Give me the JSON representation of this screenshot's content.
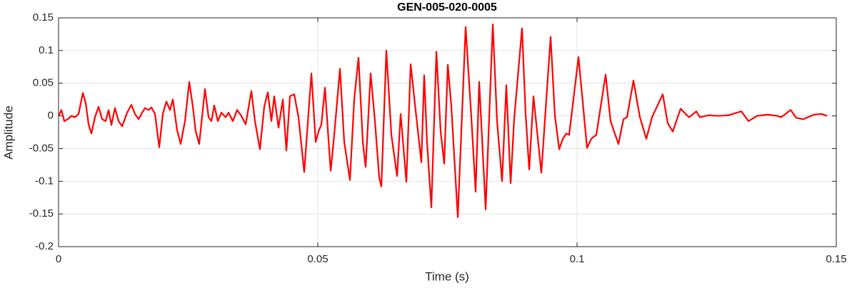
{
  "chart_data": {
    "type": "line",
    "title": "GEN-005-020-0005",
    "xlabel": "Time (s)",
    "ylabel": "Amplitude",
    "x": [
      0,
      0.00055,
      0.0011,
      0.00179,
      0.00248,
      0.00317,
      0.00386,
      0.00468,
      0.00523,
      0.00579,
      0.00634,
      0.00702,
      0.00771,
      0.0084,
      0.00909,
      0.00964,
      0.01019,
      0.01088,
      0.01157,
      0.01226,
      0.01322,
      0.01405,
      0.01474,
      0.01543,
      0.01612,
      0.01667,
      0.01736,
      0.01791,
      0.0186,
      0.01942,
      0.02011,
      0.0208,
      0.02149,
      0.02204,
      0.02287,
      0.02355,
      0.02438,
      0.02521,
      0.0259,
      0.02645,
      0.02713,
      0.02824,
      0.02893,
      0.02948,
      0.03003,
      0.03072,
      0.0314,
      0.03223,
      0.03278,
      0.03361,
      0.03444,
      0.03526,
      0.03609,
      0.03719,
      0.03788,
      0.03884,
      0.03967,
      0.04036,
      0.04105,
      0.0416,
      0.04242,
      0.04325,
      0.04394,
      0.04463,
      0.04545,
      0.04628,
      0.04738,
      0.04876,
      0.04959,
      0.05014,
      0.05069,
      0.05138,
      0.05248,
      0.05317,
      0.05427,
      0.0551,
      0.0562,
      0.05702,
      0.05785,
      0.05868,
      0.05923,
      0.06019,
      0.06102,
      0.06185,
      0.06226,
      0.06322,
      0.06419,
      0.06529,
      0.06598,
      0.06708,
      0.06791,
      0.06901,
      0.06997,
      0.07052,
      0.07107,
      0.0719,
      0.07287,
      0.07369,
      0.07438,
      0.07507,
      0.07576,
      0.077,
      0.07851,
      0.07961,
      0.08044,
      0.08113,
      0.08237,
      0.08375,
      0.08457,
      0.08554,
      0.08636,
      0.08719,
      0.08788,
      0.08939,
      0.09008,
      0.09077,
      0.0916,
      0.09311,
      0.0949,
      0.09573,
      0.09656,
      0.09725,
      0.09793,
      0.09848,
      0.10028,
      0.10193,
      0.10275,
      0.10372,
      0.10551,
      0.10647,
      0.10689,
      0.10799,
      0.10895,
      0.10964,
      0.11088,
      0.11212,
      0.11336,
      0.11446,
      0.11653,
      0.11749,
      0.11846,
      0.11997,
      0.12094,
      0.12163,
      0.123,
      0.12369,
      0.12534,
      0.12713,
      0.1292,
      0.13168,
      0.13306,
      0.13471,
      0.13678,
      0.13857,
      0.13939,
      0.14118,
      0.14229,
      0.14366,
      0.14573,
      0.14711,
      0.14821
    ],
    "series": [
      {
        "name": "signal",
        "color": "#ff0000",
        "values": [
          0,
          0.009,
          -0.008,
          -0.005,
          0,
          -0.002,
          0.003,
          0.035,
          0.02,
          -0.013,
          -0.027,
          -0.002,
          0.014,
          -0.005,
          -0.008,
          0.009,
          -0.014,
          0.012,
          -0.008,
          -0.016,
          0.005,
          0.017,
          0.003,
          -0.005,
          0.005,
          0.012,
          0.009,
          0.013,
          0.003,
          -0.048,
          0.003,
          0.022,
          0.009,
          0.025,
          -0.022,
          -0.043,
          -0.008,
          0.052,
          0.014,
          -0.024,
          -0.043,
          0.041,
          -0.002,
          -0.008,
          0.016,
          -0.008,
          0.005,
          -0.002,
          0.005,
          -0.008,
          0.009,
          0,
          -0.013,
          0.038,
          -0.008,
          -0.051,
          0.014,
          0.036,
          -0.008,
          0.03,
          -0.018,
          0.025,
          -0.053,
          0.03,
          0.033,
          -0.002,
          -0.086,
          0.065,
          -0.04,
          -0.024,
          -0.013,
          0.043,
          -0.084,
          -0.029,
          0.072,
          -0.04,
          -0.098,
          0.025,
          0.089,
          -0.04,
          -0.078,
          0.065,
          -0.008,
          -0.095,
          -0.108,
          0.1,
          -0.029,
          -0.092,
          0.003,
          -0.101,
          0.079,
          -0.002,
          -0.071,
          0.062,
          -0.04,
          -0.14,
          0.098,
          -0.024,
          -0.073,
          0.078,
          0.014,
          -0.155,
          0.136,
          -0.002,
          -0.116,
          0.052,
          -0.143,
          0.14,
          -0.008,
          -0.1,
          0.047,
          -0.103,
          -0.004,
          0.134,
          0.003,
          -0.082,
          0.03,
          -0.087,
          0.121,
          0,
          -0.051,
          -0.035,
          -0.027,
          -0.029,
          0.09,
          -0.049,
          -0.035,
          -0.029,
          0.063,
          -0.008,
          -0.018,
          -0.043,
          -0.005,
          -0.002,
          0.054,
          -0.002,
          -0.035,
          -0.002,
          0.033,
          -0.011,
          -0.024,
          0.011,
          0.003,
          -0.002,
          0.007,
          -0.002,
          0.001,
          0,
          0.001,
          0.007,
          -0.008,
          0,
          0.002,
          0,
          -0.002,
          0.009,
          -0.003,
          -0.005,
          0.002,
          0.003,
          0
        ]
      }
    ],
    "xlim": [
      0,
      0.15
    ],
    "xticks": [
      0,
      0.05,
      0.1,
      0.15
    ],
    "ylim": [
      -0.2,
      0.15
    ],
    "yticks": [
      -0.2,
      -0.15,
      -0.1,
      -0.05,
      0,
      0.05,
      0.1,
      0.15
    ],
    "grid": true
  }
}
